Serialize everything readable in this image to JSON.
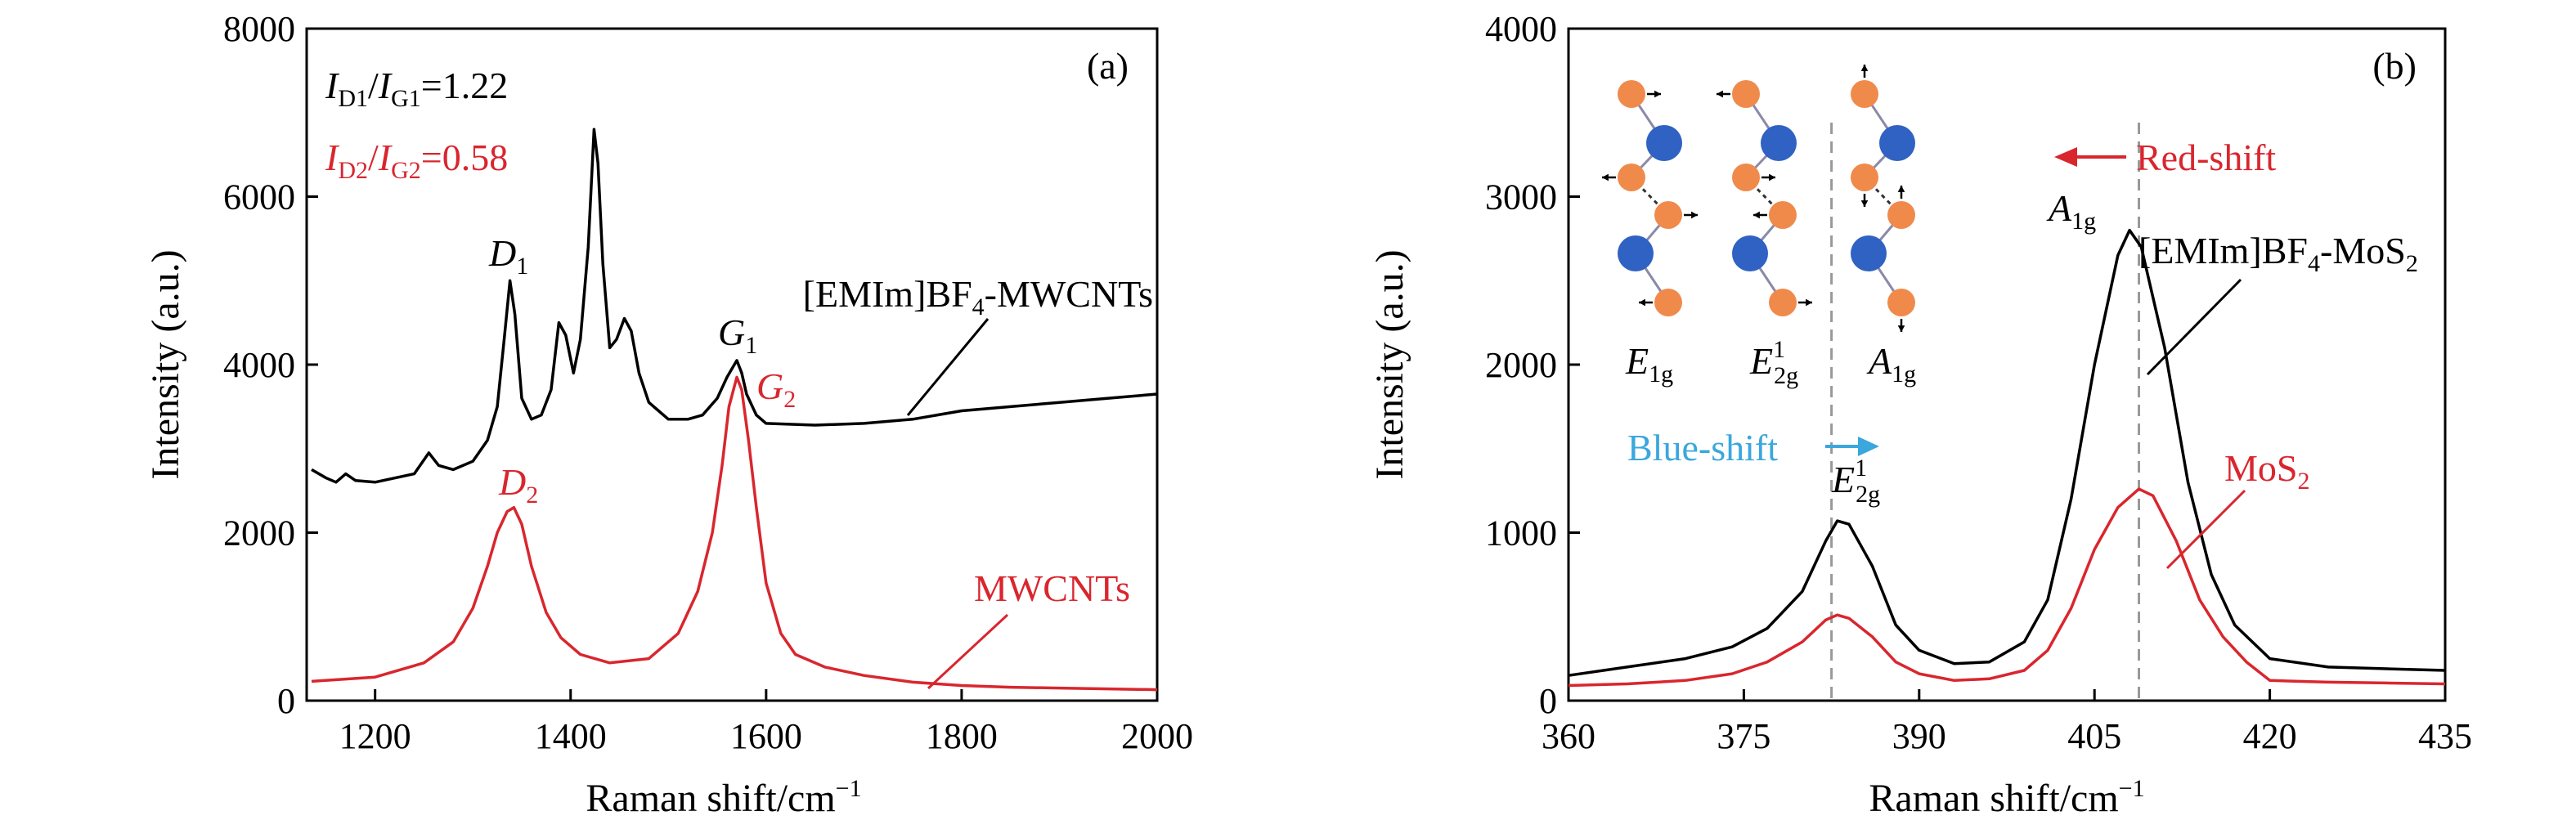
{
  "chart_data": [
    {
      "panel": "(a)",
      "type": "line",
      "xlabel": "Raman shift/cm",
      "xlabel_sup": "−1",
      "ylabel": "Intensity (a.u.)",
      "xlim": [
        1130,
        2000
      ],
      "ylim": [
        0,
        8000
      ],
      "xticks": [
        1200,
        1400,
        1600,
        1800,
        2000
      ],
      "yticks": [
        0,
        2000,
        4000,
        6000,
        8000
      ],
      "series": [
        {
          "name": "[EMIm]BF4-MWCNTs",
          "color": "#000000",
          "points": [
            [
              1135,
              2750
            ],
            [
              1150,
              2650
            ],
            [
              1160,
              2600
            ],
            [
              1170,
              2700
            ],
            [
              1180,
              2620
            ],
            [
              1200,
              2600
            ],
            [
              1220,
              2650
            ],
            [
              1240,
              2700
            ],
            [
              1255,
              2950
            ],
            [
              1265,
              2800
            ],
            [
              1280,
              2750
            ],
            [
              1300,
              2850
            ],
            [
              1315,
              3100
            ],
            [
              1325,
              3500
            ],
            [
              1332,
              4300
            ],
            [
              1338,
              5000
            ],
            [
              1343,
              4600
            ],
            [
              1350,
              3600
            ],
            [
              1360,
              3350
            ],
            [
              1370,
              3400
            ],
            [
              1380,
              3700
            ],
            [
              1388,
              4500
            ],
            [
              1395,
              4350
            ],
            [
              1403,
              3900
            ],
            [
              1410,
              4300
            ],
            [
              1418,
              5400
            ],
            [
              1424,
              6800
            ],
            [
              1428,
              6400
            ],
            [
              1433,
              5200
            ],
            [
              1440,
              4200
            ],
            [
              1447,
              4300
            ],
            [
              1455,
              4550
            ],
            [
              1462,
              4400
            ],
            [
              1470,
              3900
            ],
            [
              1480,
              3550
            ],
            [
              1490,
              3450
            ],
            [
              1500,
              3350
            ],
            [
              1520,
              3350
            ],
            [
              1535,
              3400
            ],
            [
              1550,
              3600
            ],
            [
              1560,
              3850
            ],
            [
              1565,
              3950
            ],
            [
              1570,
              4050
            ],
            [
              1575,
              3900
            ],
            [
              1580,
              3650
            ],
            [
              1590,
              3400
            ],
            [
              1600,
              3300
            ],
            [
              1650,
              3280
            ],
            [
              1700,
              3300
            ],
            [
              1750,
              3350
            ],
            [
              1800,
              3450
            ],
            [
              1850,
              3500
            ],
            [
              1900,
              3550
            ],
            [
              1950,
              3600
            ],
            [
              2000,
              3650
            ]
          ]
        },
        {
          "name": "MWCNTs",
          "color": "#d9262e",
          "points": [
            [
              1135,
              230
            ],
            [
              1200,
              280
            ],
            [
              1250,
              450
            ],
            [
              1280,
              700
            ],
            [
              1300,
              1100
            ],
            [
              1315,
              1600
            ],
            [
              1325,
              2000
            ],
            [
              1335,
              2250
            ],
            [
              1342,
              2300
            ],
            [
              1350,
              2100
            ],
            [
              1360,
              1600
            ],
            [
              1375,
              1050
            ],
            [
              1390,
              750
            ],
            [
              1410,
              550
            ],
            [
              1440,
              450
            ],
            [
              1480,
              500
            ],
            [
              1510,
              800
            ],
            [
              1530,
              1300
            ],
            [
              1545,
              2000
            ],
            [
              1555,
              2800
            ],
            [
              1562,
              3500
            ],
            [
              1570,
              3850
            ],
            [
              1575,
              3700
            ],
            [
              1582,
              3100
            ],
            [
              1590,
              2300
            ],
            [
              1600,
              1400
            ],
            [
              1615,
              800
            ],
            [
              1630,
              550
            ],
            [
              1660,
              400
            ],
            [
              1700,
              300
            ],
            [
              1750,
              220
            ],
            [
              1800,
              180
            ],
            [
              1850,
              160
            ],
            [
              1900,
              150
            ],
            [
              1950,
              140
            ],
            [
              2000,
              130
            ]
          ]
        }
      ],
      "annotations": {
        "d1_label": "D",
        "d1_sub": "1",
        "g1_label": "G",
        "g1_sub": "1",
        "d2_label": "D",
        "d2_sub": "2",
        "g2_label": "G",
        "g2_sub": "2",
        "ratio1": {
          "i": "I",
          "sub_d": "D1",
          "sub_g": "G1",
          "value": "=1.22"
        },
        "ratio2": {
          "i": "I",
          "sub_d": "D2",
          "sub_g": "G2",
          "value": "=0.58"
        },
        "black_series_label_main": "[EMIm]BF",
        "black_series_label_sub": "4",
        "black_series_label_end": "-MWCNTs",
        "red_series_label": "MWCNTs"
      }
    },
    {
      "panel": "(b)",
      "type": "line",
      "xlabel": "Raman shift/cm",
      "xlabel_sup": "−1",
      "ylabel": "Intensity (a.u.)",
      "xlim": [
        360,
        435
      ],
      "ylim": [
        0,
        4000
      ],
      "xticks": [
        360,
        375,
        390,
        405,
        420,
        435
      ],
      "yticks": [
        0,
        1000,
        2000,
        3000,
        4000
      ],
      "series": [
        {
          "name": "[EMIm]BF4-MoS2",
          "color": "#000000",
          "points": [
            [
              360,
              150
            ],
            [
              365,
              200
            ],
            [
              370,
              250
            ],
            [
              374,
              320
            ],
            [
              377,
              430
            ],
            [
              380,
              650
            ],
            [
              382,
              950
            ],
            [
              383,
              1070
            ],
            [
              384,
              1050
            ],
            [
              386,
              800
            ],
            [
              388,
              450
            ],
            [
              390,
              300
            ],
            [
              393,
              220
            ],
            [
              396,
              230
            ],
            [
              399,
              350
            ],
            [
              401,
              600
            ],
            [
              403,
              1200
            ],
            [
              405,
              2000
            ],
            [
              407,
              2650
            ],
            [
              408,
              2800
            ],
            [
              409,
              2700
            ],
            [
              411,
              2100
            ],
            [
              413,
              1300
            ],
            [
              415,
              750
            ],
            [
              417,
              450
            ],
            [
              420,
              250
            ],
            [
              425,
              200
            ],
            [
              430,
              190
            ],
            [
              435,
              180
            ]
          ]
        },
        {
          "name": "MoS2",
          "color": "#d9262e",
          "points": [
            [
              360,
              90
            ],
            [
              365,
              100
            ],
            [
              370,
              120
            ],
            [
              374,
              160
            ],
            [
              377,
              230
            ],
            [
              380,
              350
            ],
            [
              382,
              480
            ],
            [
              383,
              510
            ],
            [
              384,
              490
            ],
            [
              386,
              380
            ],
            [
              388,
              230
            ],
            [
              390,
              160
            ],
            [
              393,
              120
            ],
            [
              396,
              130
            ],
            [
              399,
              180
            ],
            [
              401,
              300
            ],
            [
              403,
              550
            ],
            [
              405,
              900
            ],
            [
              407,
              1150
            ],
            [
              408.8,
              1260
            ],
            [
              410,
              1220
            ],
            [
              412,
              950
            ],
            [
              414,
              600
            ],
            [
              416,
              380
            ],
            [
              418,
              230
            ],
            [
              420,
              120
            ],
            [
              425,
              110
            ],
            [
              430,
              105
            ],
            [
              435,
              100
            ]
          ]
        }
      ],
      "markers": [
        382.5,
        408.8
      ],
      "annotations": {
        "red_shift": "Red-shift",
        "blue_shift": "Blue-shift",
        "e2g_label": "E",
        "e2g_sup": "1",
        "e2g_sub": "2g",
        "a1g_label": "A",
        "a1g_sub": "1g",
        "black_series_label_main": "[EMIm]BF",
        "black_series_label_sub": "4",
        "black_series_label_mid": "-MoS",
        "black_series_label_sub2": "2",
        "red_series_label_main": "MoS",
        "red_series_label_sub": "2",
        "mode1_label": "E",
        "mode1_sub": "1g",
        "mode2_label": "E",
        "mode2_sup": "1",
        "mode2_sub": "2g",
        "mode3_label": "A",
        "mode3_sub": "1g"
      }
    }
  ],
  "colors": {
    "black_series": "#000000",
    "red_series": "#d9262e",
    "blue_arrow": "#3aa7dd",
    "s_atom": "#f08a4b",
    "mo_atom": "#2f62c2",
    "bond": "#8a8aa8"
  }
}
